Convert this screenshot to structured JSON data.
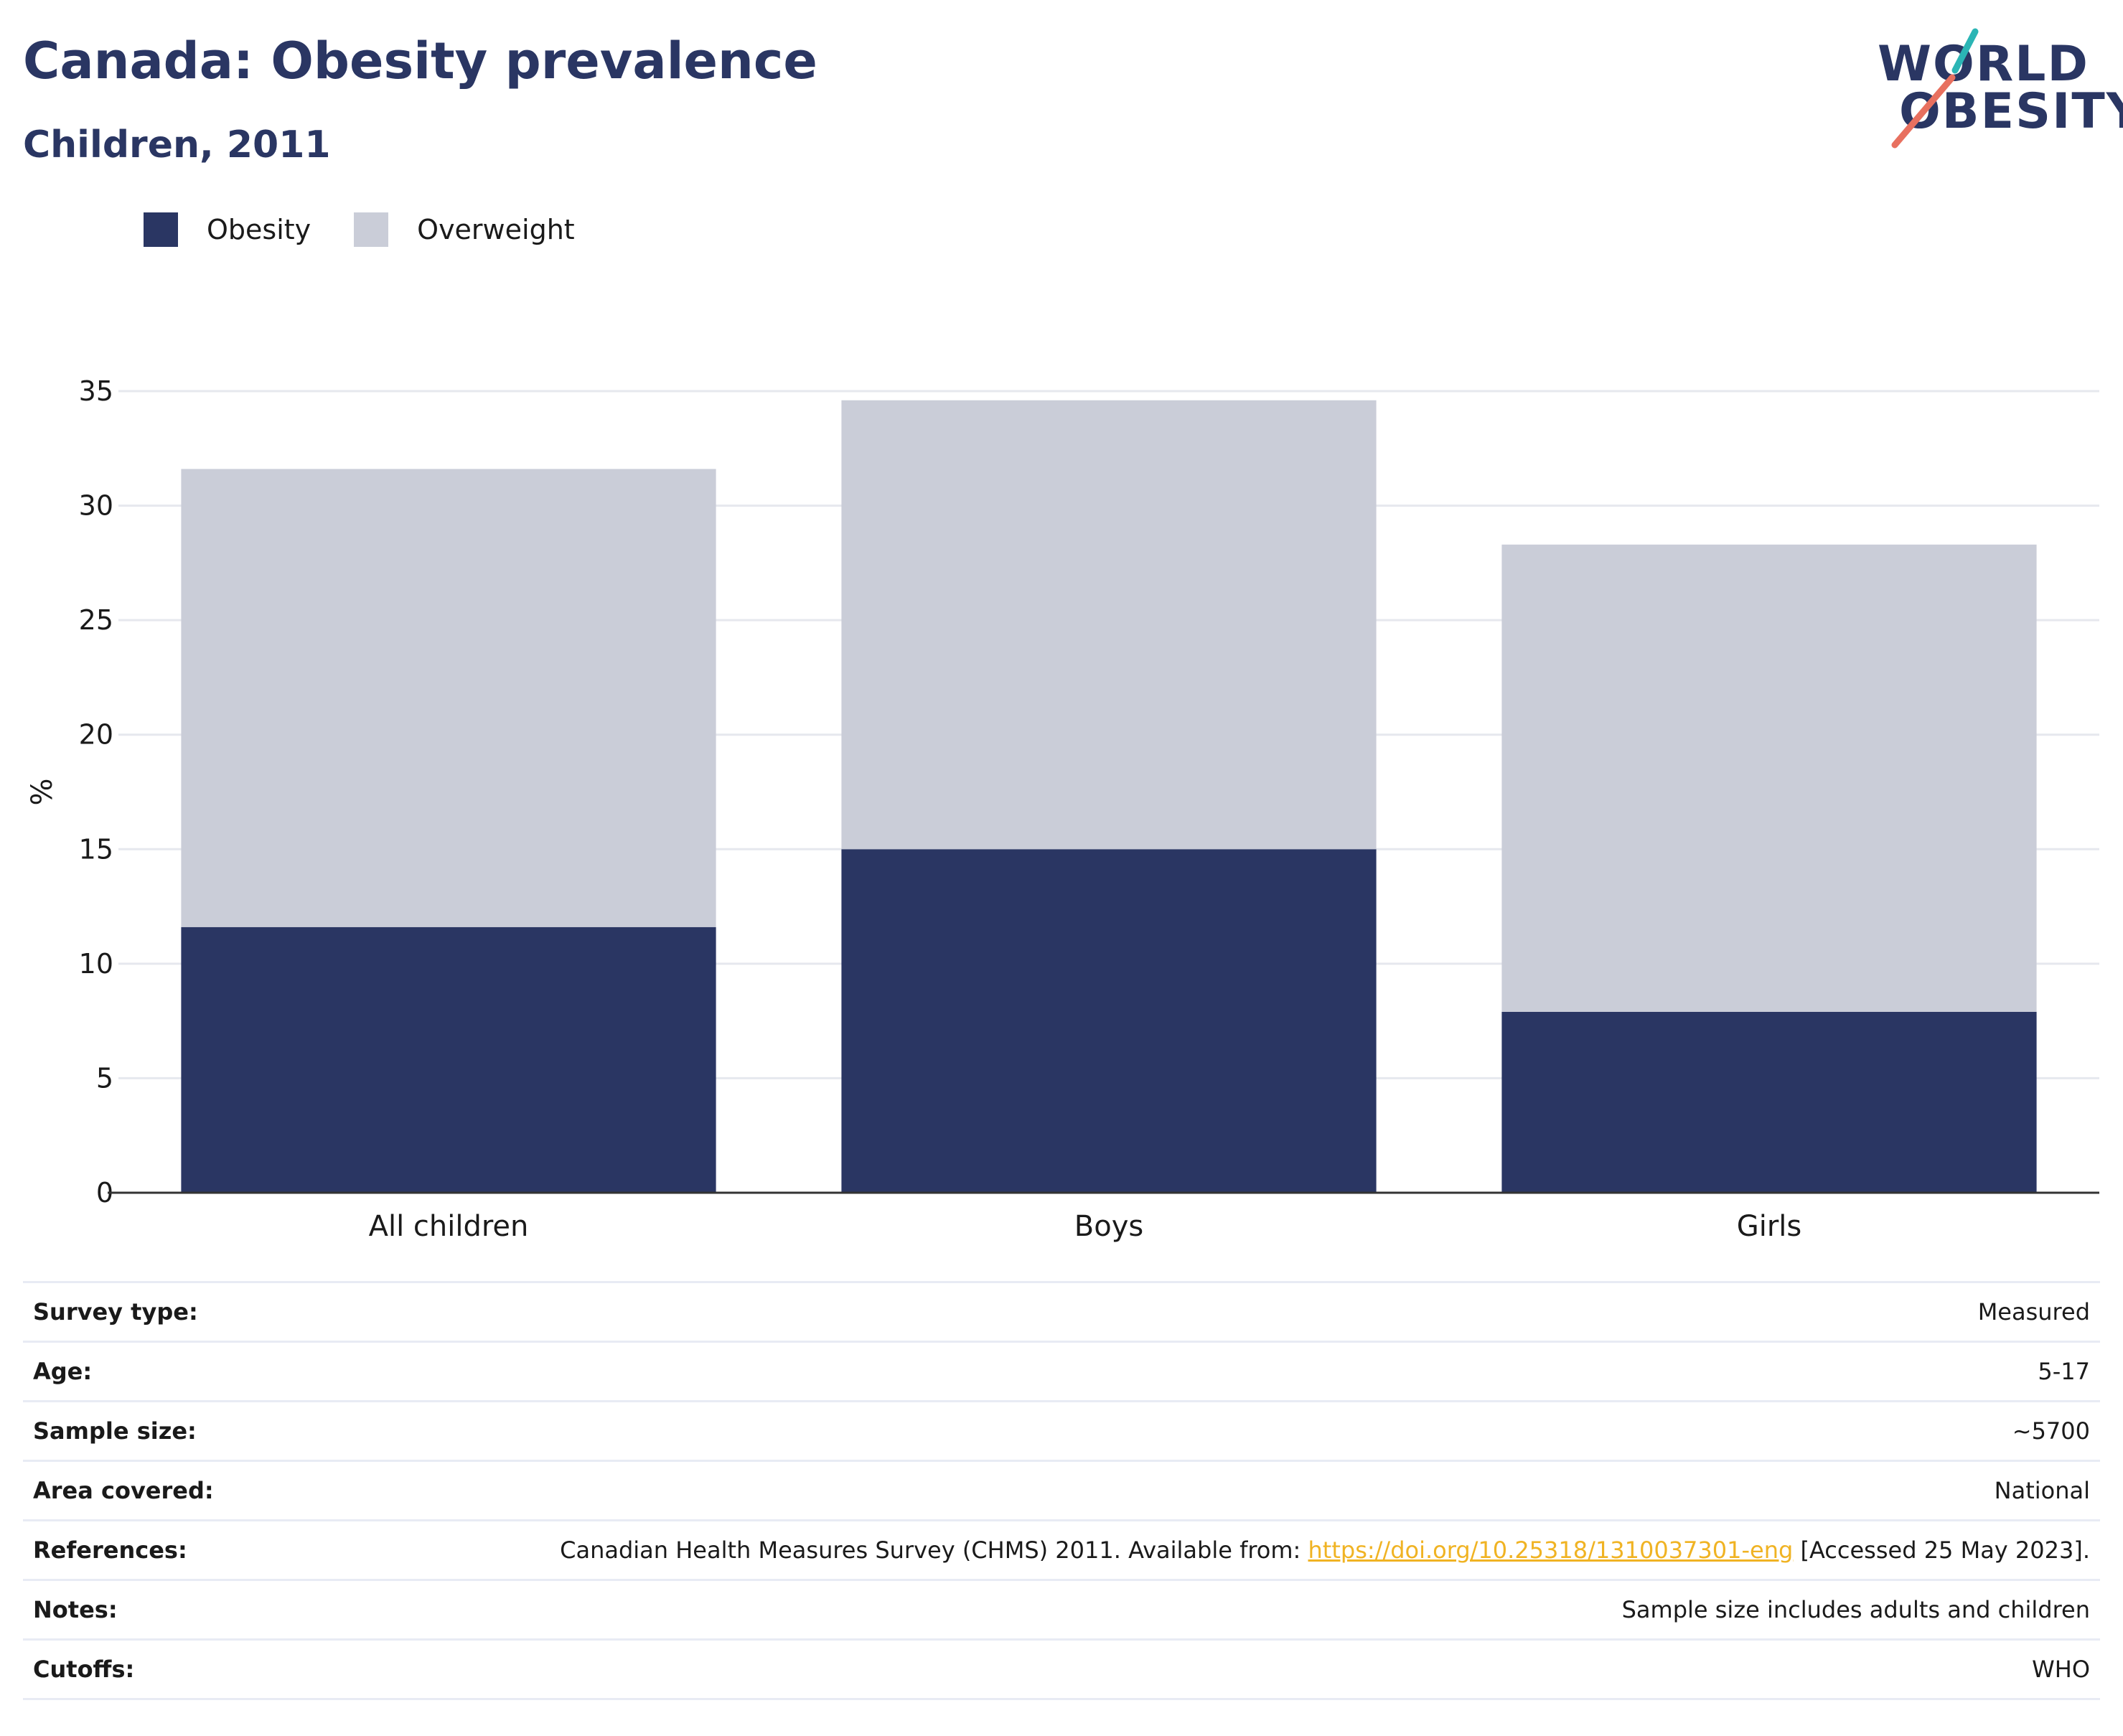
{
  "header": {
    "title": "Canada: Obesity prevalence",
    "subtitle": "Children, 2011",
    "logo_line1": "WORLD",
    "logo_line2": "OBESITY"
  },
  "colors": {
    "obesity": "#2a3663",
    "overweight": "#cacdd8",
    "accent_teal": "#2bb5b5",
    "accent_coral": "#e8705f",
    "link": "#f0b323"
  },
  "chart_data": {
    "type": "bar",
    "stacked": true,
    "categories": [
      "All children",
      "Boys",
      "Girls"
    ],
    "series": [
      {
        "name": "Obesity",
        "values": [
          11.6,
          15.0,
          7.9
        ]
      },
      {
        "name": "Overweight",
        "values": [
          20.0,
          19.6,
          20.4
        ]
      }
    ],
    "ylabel": "%",
    "xlabel": "",
    "ylim": [
      0,
      35
    ],
    "yticks": [
      0,
      5,
      10,
      15,
      20,
      25,
      30,
      35
    ],
    "grid": true,
    "legend_position": "top-left"
  },
  "info_table": [
    {
      "label": "Survey type:",
      "value": "Measured"
    },
    {
      "label": "Age:",
      "value": "5-17"
    },
    {
      "label": "Sample size:",
      "value": "~5700"
    },
    {
      "label": "Area covered:",
      "value": "National"
    },
    {
      "label": "References:",
      "value_pre": "Canadian Health Measures Survey (CHMS) 2011. Available from: ",
      "link": "https://doi.org/10.25318/1310037301-eng",
      "value_post": " [Accessed 25 May 2023]."
    },
    {
      "label": "Notes:",
      "value": "Sample size includes adults and children"
    },
    {
      "label": "Cutoffs:",
      "value": "WHO"
    }
  ]
}
